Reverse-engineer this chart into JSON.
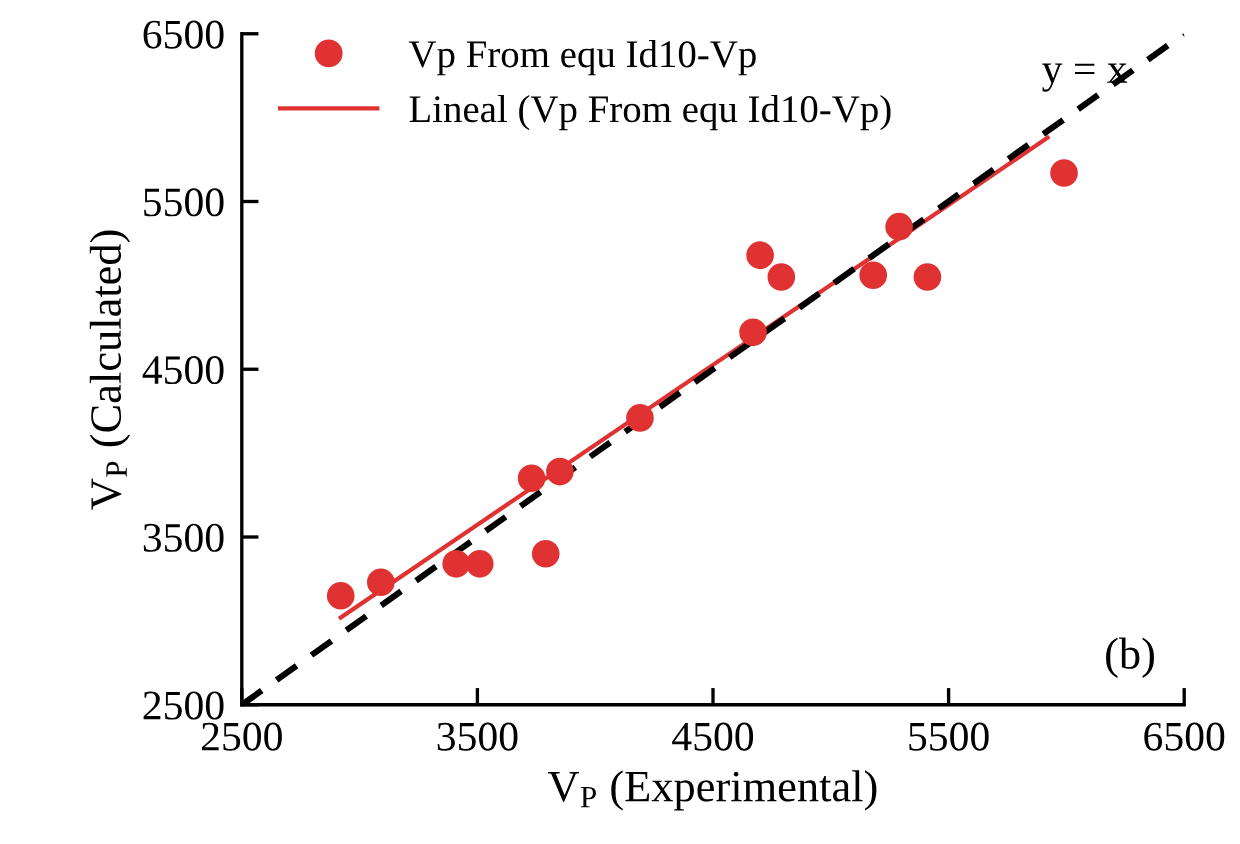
{
  "chart_data": {
    "type": "scatter",
    "xlabel": "V$_{P}$ (Experimental)",
    "ylabel": "V$_{P}$ (Calculated)",
    "xlim": [
      2500,
      6500
    ],
    "ylim": [
      2500,
      6500
    ],
    "xticks": [
      2500,
      3500,
      4500,
      5500,
      6500
    ],
    "yticks": [
      2500,
      3500,
      4500,
      5500,
      6500
    ],
    "grid": false,
    "legend": "top left",
    "series": [
      {
        "name": "Vp From equ Id10-Vp",
        "marker": "circle",
        "color": "#e03232",
        "x": [
          2920,
          3090,
          3410,
          3510,
          3730,
          3790,
          3850,
          4190,
          4670,
          4700,
          4790,
          5180,
          5290,
          5410,
          5990
        ],
        "values": [
          3150,
          3230,
          3340,
          3340,
          3850,
          3400,
          3890,
          4210,
          4720,
          5180,
          5050,
          5060,
          5350,
          5050,
          5670
        ]
      },
      {
        "name": "Lineal (Vp From equ Id10-Vp)",
        "type": "line",
        "marker": "none",
        "color": "#e03232",
        "line_style": "solid",
        "x": [
          2920,
          5920
        ],
        "values": [
          3020,
          5880
        ]
      },
      {
        "name": "y = x",
        "type": "line",
        "marker": "none",
        "color": "#000000",
        "line_style": "dashed",
        "x": [
          2500,
          6500
        ],
        "values": [
          2500,
          6500
        ]
      }
    ],
    "annotations": [
      "(b)"
    ]
  }
}
